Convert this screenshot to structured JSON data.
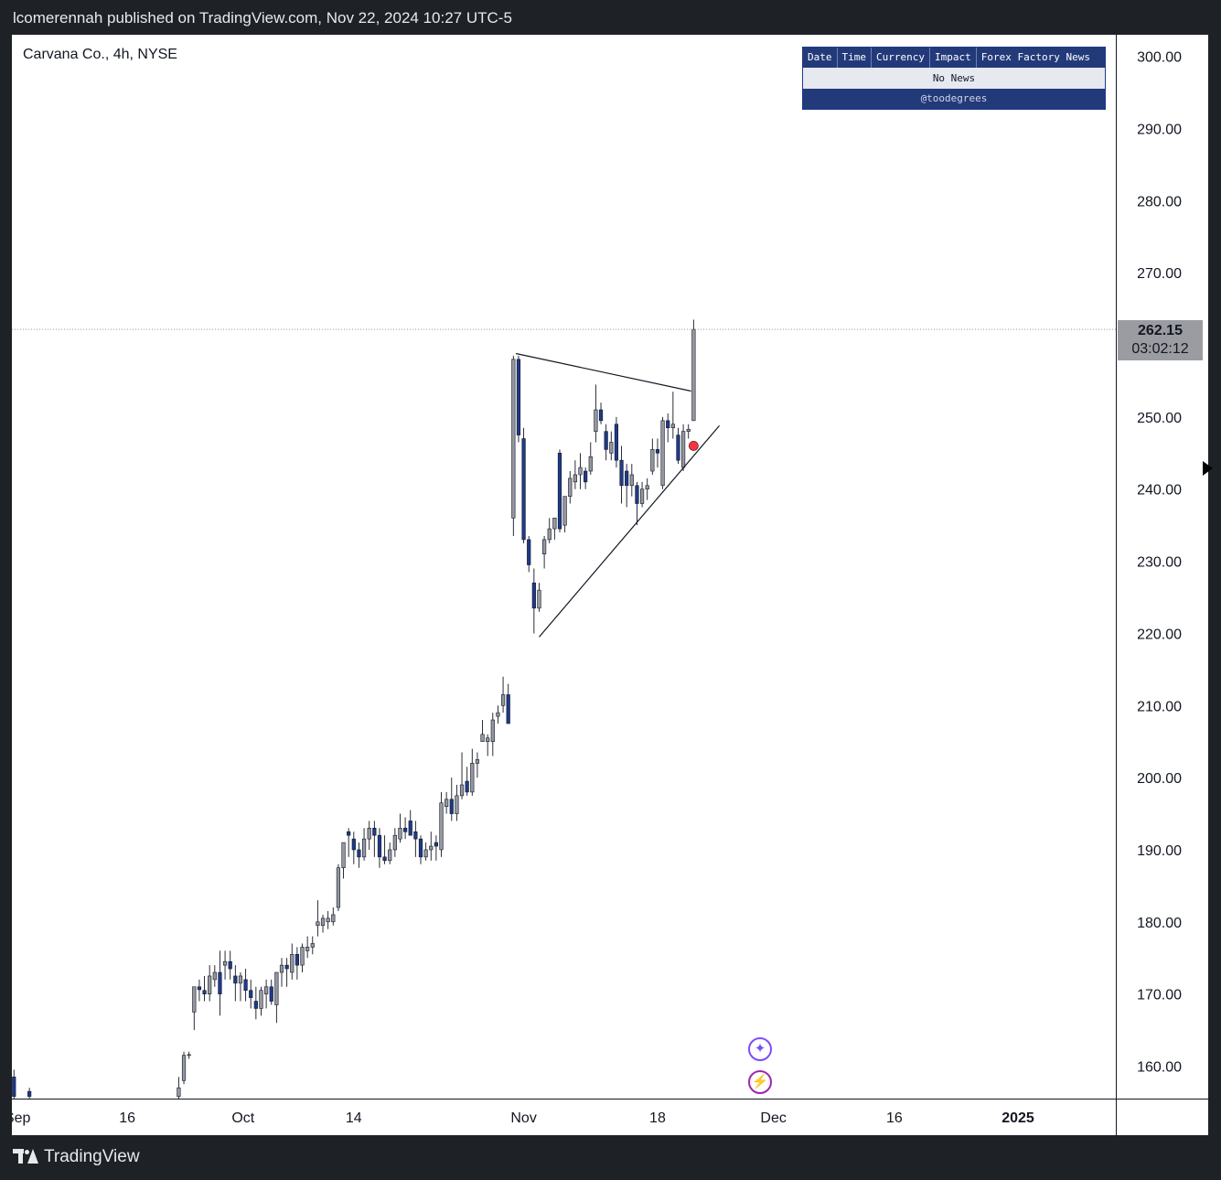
{
  "header": {
    "publish_text": "lcomerennah published on TradingView.com, Nov 22, 2024 10:27 UTC-5"
  },
  "footer": {
    "brand": "TradingView"
  },
  "chart_data": {
    "type": "candlestick",
    "title": "Carvana Co., 4h, NYSE",
    "ylim": [
      155.5,
      303
    ],
    "y_ticks": [
      "300.00",
      "290.00",
      "280.00",
      "270.00",
      "260.00",
      "250.00",
      "240.00",
      "230.00",
      "220.00",
      "210.00",
      "200.00",
      "190.00",
      "180.00",
      "170.00",
      "160.00"
    ],
    "x_ticks": [
      {
        "label": "Sep",
        "index": 0.7
      },
      {
        "label": "16",
        "index": 22
      },
      {
        "label": "Oct",
        "index": 44.5
      },
      {
        "label": "14",
        "index": 66
      },
      {
        "label": "Nov",
        "index": 99
      },
      {
        "label": "18",
        "index": 125
      },
      {
        "label": "Dec",
        "index": 147.5
      },
      {
        "label": "16",
        "index": 171
      },
      {
        "label": "2025",
        "index": 195
      }
    ],
    "x_range": [
      -0.4,
      214
    ],
    "last_price": "262.15",
    "countdown": "03:02:12",
    "colors": {
      "up": "#9598a1",
      "down": "#1e3a8a",
      "line": "#131722",
      "signal": "#f23645"
    },
    "candles": [
      {
        "i": 0,
        "o": 158.5,
        "h": 159.5,
        "l": 155.5,
        "c": 155.8
      },
      {
        "i": 3,
        "o": 156.5,
        "h": 157,
        "l": 155.5,
        "c": 155.8
      },
      {
        "i": 32,
        "o": 155.8,
        "h": 158.5,
        "l": 155.5,
        "c": 157
      },
      {
        "i": 33,
        "o": 158,
        "h": 162,
        "l": 157.5,
        "c": 161.5
      },
      {
        "i": 34,
        "o": 161.5,
        "h": 162,
        "l": 161,
        "c": 161.6
      },
      {
        "i": 35,
        "o": 167.5,
        "h": 171,
        "l": 165,
        "c": 171
      },
      {
        "i": 36,
        "o": 171,
        "h": 172,
        "l": 169,
        "c": 170.6
      },
      {
        "i": 37,
        "o": 170.5,
        "h": 172.5,
        "l": 169,
        "c": 170
      },
      {
        "i": 38,
        "o": 170,
        "h": 174,
        "l": 169,
        "c": 172.5
      },
      {
        "i": 39,
        "o": 172,
        "h": 174,
        "l": 171,
        "c": 173
      },
      {
        "i": 40,
        "o": 173,
        "h": 176,
        "l": 167,
        "c": 170
      },
      {
        "i": 41,
        "o": 174,
        "h": 176,
        "l": 172,
        "c": 174.5
      },
      {
        "i": 42,
        "o": 174.5,
        "h": 176,
        "l": 172,
        "c": 173.5
      },
      {
        "i": 43,
        "o": 172.5,
        "h": 174,
        "l": 169,
        "c": 171.5
      },
      {
        "i": 44,
        "o": 171.5,
        "h": 173,
        "l": 169,
        "c": 172.5
      },
      {
        "i": 45,
        "o": 172,
        "h": 173.5,
        "l": 169,
        "c": 170.5
      },
      {
        "i": 46,
        "o": 170.5,
        "h": 172,
        "l": 168,
        "c": 169.5
      },
      {
        "i": 47,
        "o": 169,
        "h": 171,
        "l": 166.5,
        "c": 168
      },
      {
        "i": 48,
        "o": 168,
        "h": 171,
        "l": 167,
        "c": 170.5
      },
      {
        "i": 49,
        "o": 170,
        "h": 172,
        "l": 168,
        "c": 171
      },
      {
        "i": 50,
        "o": 171,
        "h": 172,
        "l": 168.5,
        "c": 169
      },
      {
        "i": 51,
        "o": 168.5,
        "h": 172,
        "l": 166,
        "c": 173
      },
      {
        "i": 52,
        "o": 173,
        "h": 175,
        "l": 171,
        "c": 174
      },
      {
        "i": 53,
        "o": 174,
        "h": 175,
        "l": 171,
        "c": 173.5
      },
      {
        "i": 54,
        "o": 173,
        "h": 177,
        "l": 172,
        "c": 175.5
      },
      {
        "i": 55,
        "o": 175.5,
        "h": 176.5,
        "l": 172,
        "c": 174
      },
      {
        "i": 56,
        "o": 174,
        "h": 177,
        "l": 173,
        "c": 176.5
      },
      {
        "i": 57,
        "o": 176,
        "h": 178,
        "l": 175,
        "c": 176.5
      },
      {
        "i": 58,
        "o": 176.5,
        "h": 178,
        "l": 175.5,
        "c": 177
      },
      {
        "i": 59,
        "o": 179.5,
        "h": 183,
        "l": 178,
        "c": 180
      },
      {
        "i": 60,
        "o": 179.5,
        "h": 181,
        "l": 178.5,
        "c": 180.5
      },
      {
        "i": 61,
        "o": 180,
        "h": 181.5,
        "l": 179,
        "c": 180.5
      },
      {
        "i": 62,
        "o": 180,
        "h": 182,
        "l": 179.5,
        "c": 181
      },
      {
        "i": 63,
        "o": 182,
        "h": 188,
        "l": 181.5,
        "c": 187.5
      },
      {
        "i": 64,
        "o": 187.5,
        "h": 191,
        "l": 186,
        "c": 191
      },
      {
        "i": 65,
        "o": 192.5,
        "h": 193,
        "l": 189,
        "c": 192
      },
      {
        "i": 66,
        "o": 191.5,
        "h": 192.5,
        "l": 188,
        "c": 190
      },
      {
        "i": 67,
        "o": 190,
        "h": 191,
        "l": 187.5,
        "c": 189
      },
      {
        "i": 68,
        "o": 189,
        "h": 193,
        "l": 188.5,
        "c": 191.5
      },
      {
        "i": 69,
        "o": 191.5,
        "h": 194,
        "l": 190,
        "c": 193
      },
      {
        "i": 70,
        "o": 193,
        "h": 194,
        "l": 189,
        "c": 192
      },
      {
        "i": 71,
        "o": 192,
        "h": 193,
        "l": 187.5,
        "c": 189
      },
      {
        "i": 72,
        "o": 189,
        "h": 192,
        "l": 188,
        "c": 188.5
      },
      {
        "i": 73,
        "o": 188.5,
        "h": 191,
        "l": 188,
        "c": 190
      },
      {
        "i": 74,
        "o": 190,
        "h": 193,
        "l": 189,
        "c": 192
      },
      {
        "i": 75,
        "o": 191.5,
        "h": 195,
        "l": 191,
        "c": 193
      },
      {
        "i": 76,
        "o": 193,
        "h": 194.5,
        "l": 191.5,
        "c": 192.5
      },
      {
        "i": 77,
        "o": 194,
        "h": 195.5,
        "l": 192,
        "c": 192
      },
      {
        "i": 78,
        "o": 192.5,
        "h": 194,
        "l": 189,
        "c": 191.5
      },
      {
        "i": 79,
        "o": 191.5,
        "h": 192,
        "l": 188,
        "c": 189
      },
      {
        "i": 80,
        "o": 189,
        "h": 191,
        "l": 188.5,
        "c": 190
      },
      {
        "i": 81,
        "o": 190,
        "h": 192.5,
        "l": 188.5,
        "c": 190.5
      },
      {
        "i": 82,
        "o": 191,
        "h": 192,
        "l": 188.5,
        "c": 190.5
      },
      {
        "i": 83,
        "o": 190,
        "h": 198,
        "l": 189,
        "c": 196.5
      },
      {
        "i": 84,
        "o": 196,
        "h": 198,
        "l": 195,
        "c": 197
      },
      {
        "i": 85,
        "o": 197,
        "h": 200,
        "l": 194,
        "c": 195
      },
      {
        "i": 86,
        "o": 195,
        "h": 199,
        "l": 194,
        "c": 197.5
      },
      {
        "i": 87,
        "o": 197.5,
        "h": 203.5,
        "l": 197,
        "c": 199
      },
      {
        "i": 88,
        "o": 199.5,
        "h": 201.5,
        "l": 197.5,
        "c": 198
      },
      {
        "i": 89,
        "o": 198,
        "h": 204,
        "l": 197.5,
        "c": 202
      },
      {
        "i": 90,
        "o": 202,
        "h": 203.5,
        "l": 200,
        "c": 202.5
      },
      {
        "i": 91,
        "o": 205,
        "h": 208,
        "l": 205,
        "c": 206
      },
      {
        "i": 92,
        "o": 205,
        "h": 206,
        "l": 203,
        "c": 205.5
      },
      {
        "i": 93,
        "o": 205,
        "h": 209,
        "l": 203,
        "c": 208
      },
      {
        "i": 94,
        "o": 208.5,
        "h": 210,
        "l": 207.5,
        "c": 209
      },
      {
        "i": 95,
        "o": 210,
        "h": 214,
        "l": 209,
        "c": 211.5
      },
      {
        "i": 96,
        "o": 211.5,
        "h": 213,
        "l": 207.5,
        "c": 207.5
      },
      {
        "i": 97,
        "o": 236,
        "h": 258.5,
        "l": 233.5,
        "c": 258
      },
      {
        "i": 98,
        "o": 258,
        "h": 258.5,
        "l": 246.5,
        "c": 247.5
      },
      {
        "i": 99,
        "o": 247,
        "h": 248.5,
        "l": 232.5,
        "c": 233
      },
      {
        "i": 100,
        "o": 233,
        "h": 233.5,
        "l": 228.5,
        "c": 229.5
      },
      {
        "i": 101,
        "o": 227,
        "h": 229,
        "l": 220,
        "c": 223.5
      },
      {
        "i": 102,
        "o": 223.5,
        "h": 227,
        "l": 223,
        "c": 226
      },
      {
        "i": 103,
        "o": 231,
        "h": 233.5,
        "l": 229,
        "c": 233
      },
      {
        "i": 104,
        "o": 233,
        "h": 236,
        "l": 232.5,
        "c": 234.5
      },
      {
        "i": 105,
        "o": 234.5,
        "h": 236,
        "l": 233,
        "c": 236
      },
      {
        "i": 106,
        "o": 245,
        "h": 245.5,
        "l": 234,
        "c": 234.5
      },
      {
        "i": 107,
        "o": 235,
        "h": 239,
        "l": 234,
        "c": 239
      },
      {
        "i": 108,
        "o": 239,
        "h": 242.5,
        "l": 238,
        "c": 241.5
      },
      {
        "i": 109,
        "o": 241,
        "h": 244,
        "l": 240,
        "c": 242
      },
      {
        "i": 110,
        "o": 242,
        "h": 245,
        "l": 240,
        "c": 243
      },
      {
        "i": 111,
        "o": 242.5,
        "h": 243,
        "l": 240,
        "c": 241
      },
      {
        "i": 112,
        "o": 242.5,
        "h": 246.5,
        "l": 242,
        "c": 244.5
      },
      {
        "i": 113,
        "o": 248,
        "h": 254.5,
        "l": 246.5,
        "c": 251
      },
      {
        "i": 114,
        "o": 251,
        "h": 252,
        "l": 249,
        "c": 249.5
      },
      {
        "i": 115,
        "o": 248,
        "h": 249,
        "l": 244,
        "c": 245.5
      },
      {
        "i": 116,
        "o": 245,
        "h": 248,
        "l": 244,
        "c": 246.5
      },
      {
        "i": 117,
        "o": 249,
        "h": 250,
        "l": 243,
        "c": 244
      },
      {
        "i": 118,
        "o": 244,
        "h": 246,
        "l": 238,
        "c": 240.5
      },
      {
        "i": 119,
        "o": 242.5,
        "h": 243.5,
        "l": 237.5,
        "c": 240.5
      },
      {
        "i": 120,
        "o": 240.5,
        "h": 243.5,
        "l": 239,
        "c": 242
      },
      {
        "i": 121,
        "o": 240.5,
        "h": 241,
        "l": 235,
        "c": 238
      },
      {
        "i": 122,
        "o": 238,
        "h": 241,
        "l": 237.5,
        "c": 240
      },
      {
        "i": 123,
        "o": 240,
        "h": 241.5,
        "l": 238.5,
        "c": 240.5
      },
      {
        "i": 124,
        "o": 242.5,
        "h": 247,
        "l": 242,
        "c": 245.5
      },
      {
        "i": 125,
        "o": 245.5,
        "h": 247,
        "l": 243,
        "c": 245
      },
      {
        "i": 126,
        "o": 240.5,
        "h": 250,
        "l": 240,
        "c": 249.5
      },
      {
        "i": 127,
        "o": 249.5,
        "h": 250.5,
        "l": 246.5,
        "c": 248.5
      },
      {
        "i": 128,
        "o": 248.5,
        "h": 253.5,
        "l": 247,
        "c": 249
      },
      {
        "i": 129,
        "o": 247.5,
        "h": 248.5,
        "l": 243.5,
        "c": 244
      },
      {
        "i": 130,
        "o": 243,
        "h": 249,
        "l": 242.5,
        "c": 248
      },
      {
        "i": 131,
        "o": 248,
        "h": 249,
        "l": 247,
        "c": 248.3
      },
      {
        "i": 132,
        "o": 249.5,
        "h": 263.5,
        "l": 249.5,
        "c": 262.15
      }
    ],
    "drawings": [
      {
        "type": "trendline",
        "from": {
          "i": 97.5,
          "v": 258.8
        },
        "to": {
          "i": 131.5,
          "v": 253.6
        }
      },
      {
        "type": "trendline",
        "from": {
          "i": 102,
          "v": 219.5
        },
        "to": {
          "i": 137,
          "v": 248.8
        }
      },
      {
        "type": "marker",
        "i": 132,
        "v": 246
      }
    ]
  },
  "news_widget": {
    "columns": [
      "Date",
      "Time",
      "Currency",
      "Impact",
      "Forex Factory News"
    ],
    "row": "No News",
    "credit": "@toodegrees"
  },
  "icons": {
    "ai_button": "sparkle-icon",
    "alert_button": "lightning-icon"
  }
}
